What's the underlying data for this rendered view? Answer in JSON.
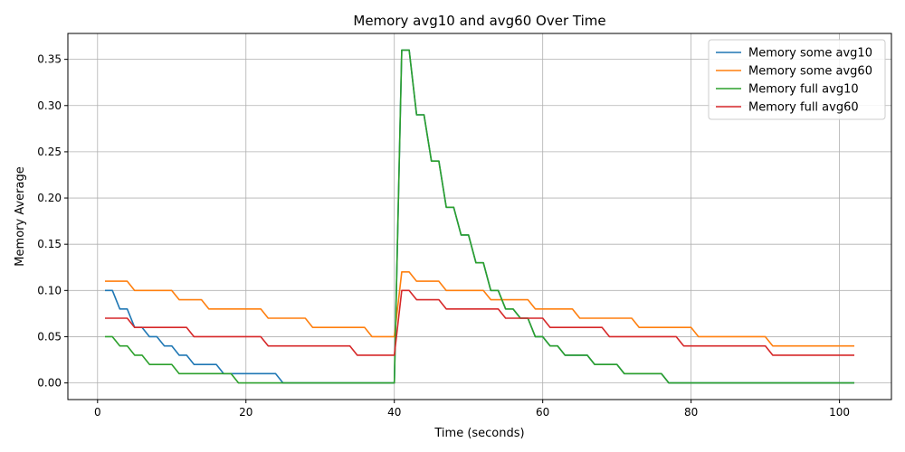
{
  "chart_data": {
    "type": "line",
    "title": "Memory avg10 and avg60 Over Time",
    "xlabel": "Time (seconds)",
    "ylabel": "Memory Average",
    "xlim": [
      -4,
      107
    ],
    "ylim": [
      -0.018,
      0.378
    ],
    "xticks": [
      0,
      20,
      40,
      60,
      80,
      100
    ],
    "xtick_labels": [
      "0",
      "20",
      "40",
      "60",
      "80",
      "100"
    ],
    "yticks": [
      0.0,
      0.05,
      0.1,
      0.15,
      0.2,
      0.25,
      0.3,
      0.35
    ],
    "ytick_labels": [
      "0.00",
      "0.05",
      "0.10",
      "0.15",
      "0.20",
      "0.25",
      "0.30",
      "0.35"
    ],
    "grid": true,
    "legend_position": "top-right",
    "x": [
      1,
      2,
      3,
      4,
      5,
      6,
      7,
      8,
      9,
      10,
      11,
      12,
      13,
      14,
      15,
      16,
      17,
      18,
      19,
      20,
      21,
      22,
      23,
      24,
      25,
      26,
      27,
      28,
      29,
      30,
      31,
      32,
      33,
      34,
      35,
      36,
      37,
      38,
      39,
      40,
      41,
      42,
      43,
      44,
      45,
      46,
      47,
      48,
      49,
      50,
      51,
      52,
      53,
      54,
      55,
      56,
      57,
      58,
      59,
      60,
      61,
      62,
      63,
      64,
      65,
      66,
      67,
      68,
      69,
      70,
      71,
      72,
      73,
      74,
      75,
      76,
      77,
      78,
      79,
      80,
      81,
      82,
      83,
      84,
      85,
      86,
      87,
      88,
      89,
      90,
      91,
      92,
      93,
      94,
      95,
      96,
      97,
      98,
      99,
      100,
      101,
      102
    ],
    "series": [
      {
        "name": "Memory some avg10",
        "color": "#1f77b4",
        "values": [
          0.1,
          0.1,
          0.08,
          0.08,
          0.06,
          0.06,
          0.05,
          0.05,
          0.04,
          0.04,
          0.03,
          0.03,
          0.02,
          0.02,
          0.02,
          0.02,
          0.01,
          0.01,
          0.01,
          0.01,
          0.01,
          0.01,
          0.01,
          0.01,
          0,
          0,
          0,
          0,
          0,
          0,
          0,
          0,
          0,
          0,
          0,
          0,
          0,
          0,
          0,
          0,
          0.36,
          0.36,
          0.29,
          0.29,
          0.24,
          0.24,
          0.19,
          0.19,
          0.16,
          0.16,
          0.13,
          0.13,
          0.1,
          0.1,
          0.08,
          0.08,
          0.07,
          0.07,
          0.05,
          0.05,
          0.04,
          0.04,
          0.03,
          0.03,
          0.03,
          0.03,
          0.02,
          0.02,
          0.02,
          0.02,
          0.01,
          0.01,
          0.01,
          0.01,
          0.01,
          0.01,
          0,
          0,
          0,
          0,
          0,
          0,
          0,
          0,
          0,
          0,
          0,
          0,
          0,
          0,
          0,
          0,
          0,
          0,
          0,
          0,
          0,
          0,
          0,
          0,
          0,
          0
        ]
      },
      {
        "name": "Memory some avg60",
        "color": "#ff7f0e",
        "values": [
          0.11,
          0.11,
          0.11,
          0.11,
          0.1,
          0.1,
          0.1,
          0.1,
          0.1,
          0.1,
          0.09,
          0.09,
          0.09,
          0.09,
          0.08,
          0.08,
          0.08,
          0.08,
          0.08,
          0.08,
          0.08,
          0.08,
          0.07,
          0.07,
          0.07,
          0.07,
          0.07,
          0.07,
          0.06,
          0.06,
          0.06,
          0.06,
          0.06,
          0.06,
          0.06,
          0.06,
          0.05,
          0.05,
          0.05,
          0.05,
          0.12,
          0.12,
          0.11,
          0.11,
          0.11,
          0.11,
          0.1,
          0.1,
          0.1,
          0.1,
          0.1,
          0.1,
          0.09,
          0.09,
          0.09,
          0.09,
          0.09,
          0.09,
          0.08,
          0.08,
          0.08,
          0.08,
          0.08,
          0.08,
          0.07,
          0.07,
          0.07,
          0.07,
          0.07,
          0.07,
          0.07,
          0.07,
          0.06,
          0.06,
          0.06,
          0.06,
          0.06,
          0.06,
          0.06,
          0.06,
          0.05,
          0.05,
          0.05,
          0.05,
          0.05,
          0.05,
          0.05,
          0.05,
          0.05,
          0.05,
          0.04,
          0.04,
          0.04,
          0.04,
          0.04,
          0.04,
          0.04,
          0.04,
          0.04,
          0.04,
          0.04,
          0.04
        ]
      },
      {
        "name": "Memory full avg10",
        "color": "#2ca02c",
        "values": [
          0.05,
          0.05,
          0.04,
          0.04,
          0.03,
          0.03,
          0.02,
          0.02,
          0.02,
          0.02,
          0.01,
          0.01,
          0.01,
          0.01,
          0.01,
          0.01,
          0.01,
          0.01,
          0,
          0,
          0,
          0,
          0,
          0,
          0,
          0,
          0,
          0,
          0,
          0,
          0,
          0,
          0,
          0,
          0,
          0,
          0,
          0,
          0,
          0,
          0.36,
          0.36,
          0.29,
          0.29,
          0.24,
          0.24,
          0.19,
          0.19,
          0.16,
          0.16,
          0.13,
          0.13,
          0.1,
          0.1,
          0.08,
          0.08,
          0.07,
          0.07,
          0.05,
          0.05,
          0.04,
          0.04,
          0.03,
          0.03,
          0.03,
          0.03,
          0.02,
          0.02,
          0.02,
          0.02,
          0.01,
          0.01,
          0.01,
          0.01,
          0.01,
          0.01,
          0,
          0,
          0,
          0,
          0,
          0,
          0,
          0,
          0,
          0,
          0,
          0,
          0,
          0,
          0,
          0,
          0,
          0,
          0,
          0,
          0,
          0,
          0,
          0,
          0,
          0
        ]
      },
      {
        "name": "Memory full avg60",
        "color": "#d62728",
        "values": [
          0.07,
          0.07,
          0.07,
          0.07,
          0.06,
          0.06,
          0.06,
          0.06,
          0.06,
          0.06,
          0.06,
          0.06,
          0.05,
          0.05,
          0.05,
          0.05,
          0.05,
          0.05,
          0.05,
          0.05,
          0.05,
          0.05,
          0.04,
          0.04,
          0.04,
          0.04,
          0.04,
          0.04,
          0.04,
          0.04,
          0.04,
          0.04,
          0.04,
          0.04,
          0.03,
          0.03,
          0.03,
          0.03,
          0.03,
          0.03,
          0.1,
          0.1,
          0.09,
          0.09,
          0.09,
          0.09,
          0.08,
          0.08,
          0.08,
          0.08,
          0.08,
          0.08,
          0.08,
          0.08,
          0.07,
          0.07,
          0.07,
          0.07,
          0.07,
          0.07,
          0.06,
          0.06,
          0.06,
          0.06,
          0.06,
          0.06,
          0.06,
          0.06,
          0.05,
          0.05,
          0.05,
          0.05,
          0.05,
          0.05,
          0.05,
          0.05,
          0.05,
          0.05,
          0.04,
          0.04,
          0.04,
          0.04,
          0.04,
          0.04,
          0.04,
          0.04,
          0.04,
          0.04,
          0.04,
          0.04,
          0.03,
          0.03,
          0.03,
          0.03,
          0.03,
          0.03,
          0.03,
          0.03,
          0.03,
          0.03,
          0.03,
          0.03
        ]
      }
    ]
  }
}
